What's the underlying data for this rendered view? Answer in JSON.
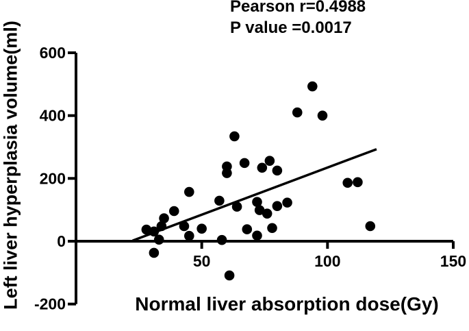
{
  "stats": {
    "line1": "Pearson r=0.4988",
    "line2": "P value =0.0017"
  },
  "axes": {
    "x": {
      "label": "Normal liver absorption dose(Gy)"
    },
    "y": {
      "label": "Left liver hyperplasia volume(ml)"
    }
  },
  "colors": {
    "ink": "#000000",
    "background": "#ffffff"
  },
  "chart_data": {
    "type": "scatter",
    "title": "Pearson r=0.4988; P value =0.0017",
    "xlabel": "Normal liver absorption dose(Gy)",
    "ylabel": "Left liver hyperplasia volume(ml)",
    "xlim": [
      0,
      150
    ],
    "ylim": [
      -200,
      600
    ],
    "x_ticks": [
      50,
      100,
      150
    ],
    "y_ticks": [
      -200,
      0,
      200,
      400,
      600
    ],
    "grid": false,
    "legend": false,
    "pearson_r": 0.4988,
    "p_value": 0.0017,
    "points": [
      [
        28,
        37
      ],
      [
        31,
        31
      ],
      [
        31,
        -37
      ],
      [
        33,
        5
      ],
      [
        34,
        48
      ],
      [
        35,
        73
      ],
      [
        39,
        96
      ],
      [
        43,
        48
      ],
      [
        45,
        17
      ],
      [
        45,
        157
      ],
      [
        50,
        40
      ],
      [
        57,
        129
      ],
      [
        58,
        4
      ],
      [
        60,
        238
      ],
      [
        60,
        217
      ],
      [
        61,
        -109
      ],
      [
        63,
        334
      ],
      [
        64,
        110
      ],
      [
        67,
        249
      ],
      [
        68,
        38
      ],
      [
        72,
        125
      ],
      [
        73,
        99
      ],
      [
        72,
        18
      ],
      [
        74,
        234
      ],
      [
        76,
        88
      ],
      [
        77,
        256
      ],
      [
        78,
        42
      ],
      [
        80,
        225
      ],
      [
        80,
        112
      ],
      [
        84,
        123
      ],
      [
        88,
        410
      ],
      [
        94,
        493
      ],
      [
        98,
        400
      ],
      [
        108,
        186
      ],
      [
        112,
        188
      ],
      [
        117,
        48
      ]
    ],
    "regression_line": {
      "x1": 22.5,
      "y1": 2,
      "x2": 119.5,
      "y2": 293
    }
  }
}
